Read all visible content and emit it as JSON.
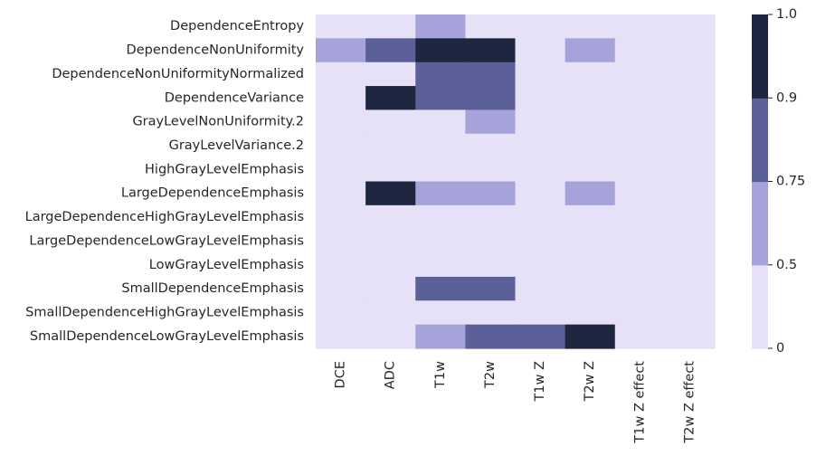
{
  "chart_data": {
    "type": "heatmap",
    "title": "",
    "xlabel": "",
    "ylabel": "",
    "x_categories": [
      "DCE",
      "ADC",
      "T1w",
      "T2w",
      "T1w Z",
      "T2w Z",
      "T1w Z effect",
      "T2w Z effect"
    ],
    "y_categories": [
      "DependenceEntropy",
      "DependenceNonUniformity",
      "DependenceNonUniformityNormalized",
      "DependenceVariance",
      "GrayLevelNonUniformity.2",
      "GrayLevelVariance.2",
      "HighGrayLevelEmphasis",
      "LargeDependenceEmphasis",
      "LargeDependenceHighGrayLevelEmphasis",
      "LargeDependenceLowGrayLevelEmphasis",
      "LowGrayLevelEmphasis",
      "SmallDependenceEmphasis",
      "SmallDependenceHighGrayLevelEmphasis",
      "SmallDependenceLowGrayLevelEmphasis"
    ],
    "values": [
      [
        0.4,
        0.4,
        0.6,
        0.4,
        0.4,
        0.4,
        0.4,
        0.4
      ],
      [
        0.6,
        0.8,
        0.95,
        0.95,
        0.4,
        0.6,
        0.4,
        0.4
      ],
      [
        0.4,
        0.4,
        0.8,
        0.8,
        0.4,
        0.4,
        0.4,
        0.4
      ],
      [
        0.4,
        0.95,
        0.8,
        0.8,
        0.4,
        0.4,
        0.4,
        0.4
      ],
      [
        0.4,
        0.4,
        0.4,
        0.6,
        0.4,
        0.4,
        0.4,
        0.4
      ],
      [
        0.4,
        0.4,
        0.4,
        0.4,
        0.4,
        0.4,
        0.4,
        0.4
      ],
      [
        0.4,
        0.4,
        0.4,
        0.4,
        0.4,
        0.4,
        0.4,
        0.4
      ],
      [
        0.4,
        0.95,
        0.6,
        0.6,
        0.4,
        0.6,
        0.4,
        0.4
      ],
      [
        0.4,
        0.4,
        0.4,
        0.4,
        0.4,
        0.4,
        0.4,
        0.4
      ],
      [
        0.4,
        0.4,
        0.4,
        0.4,
        0.4,
        0.4,
        0.4,
        0.4
      ],
      [
        0.4,
        0.4,
        0.4,
        0.4,
        0.4,
        0.4,
        0.4,
        0.4
      ],
      [
        0.4,
        0.4,
        0.8,
        0.8,
        0.4,
        0.4,
        0.4,
        0.4
      ],
      [
        0.4,
        0.4,
        0.4,
        0.4,
        0.4,
        0.4,
        0.4,
        0.4
      ],
      [
        0.4,
        0.4,
        0.6,
        0.8,
        0.8,
        0.95,
        0.4,
        0.4
      ]
    ],
    "colorbar": {
      "boundaries": [
        0,
        0.5,
        0.75,
        0.9,
        1.0
      ],
      "tick_labels": [
        "0",
        "0.5",
        "0.75",
        "0.9",
        "1.0"
      ],
      "colors": [
        "#e6e1f6",
        "#a6a2da",
        "#5b6098",
        "#1f2640"
      ]
    }
  }
}
